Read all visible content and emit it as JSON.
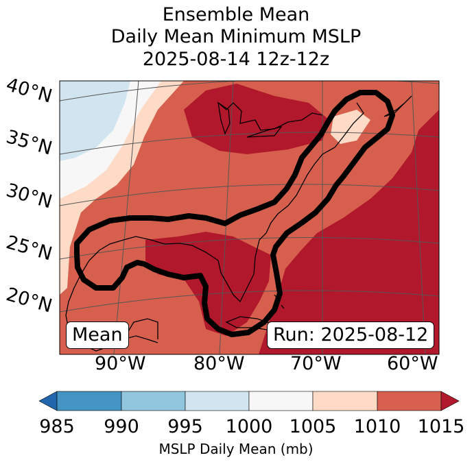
{
  "title": {
    "line1": "Ensemble Mean",
    "line2": "Daily Mean Minimum MSLP",
    "line3": "2025-08-14 12z-12z"
  },
  "map": {
    "lat_labels": [
      "40°N",
      "35°N",
      "30°N",
      "25°N",
      "20°N"
    ],
    "lon_labels": [
      "90°W",
      "80°W",
      "70°W",
      "60°W"
    ],
    "stat_label": "Mean",
    "run_label": "Run: 2025-08-12"
  },
  "colorbar": {
    "ticks": [
      "985",
      "990",
      "995",
      "1000",
      "1005",
      "1010",
      "1015"
    ],
    "label": "MSLP Daily Mean (mb)",
    "colors": {
      "below": "#2166ac",
      "985_990": "#4393c3",
      "990_995": "#92c5de",
      "995_1000": "#d1e5f0",
      "1000_1005": "#f7f7f7",
      "1005_1010": "#fddbc7",
      "1010_1015": "#d6604d",
      "above": "#b2182b"
    }
  }
}
